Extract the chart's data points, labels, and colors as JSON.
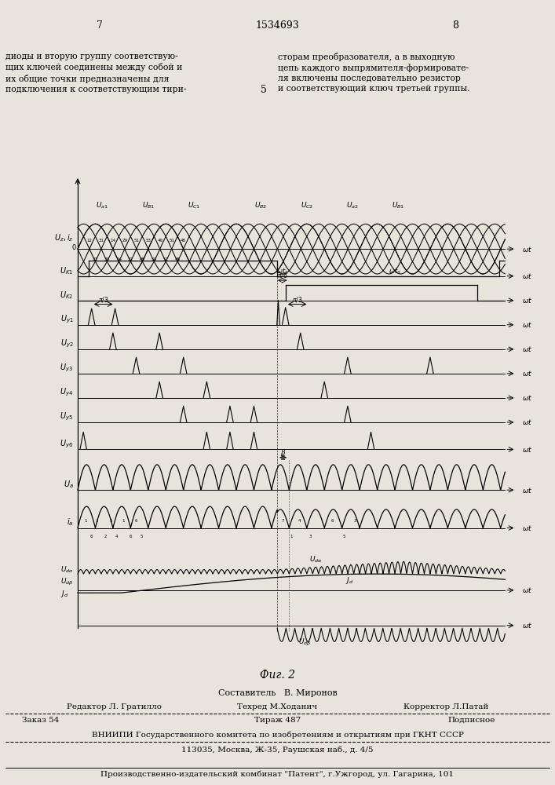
{
  "bg_color": "#e8e4dc",
  "fig_width": 7.07,
  "fig_height": 10.0,
  "dpi": 100,
  "header_page_nums": [
    "7",
    "1534693",
    "8"
  ],
  "left_text": "диоды и вторую группу соответствую-\nщих ключей соединены между собой и\nих общие точки предназначены для\nподключения к соответствующим тири-",
  "right_text": "сторам преобразователя, а в выходную\nцепь каждого выпрямителя-формировате-\nля включены последовательно резистор\nи соответствующий ключ третьей группы.",
  "center_num": "5",
  "fig_label": "Фиг. 2",
  "row_labels_left": [
    "U_z,i_z",
    "U_K1",
    "U_K2",
    "U_y1",
    "U_y2",
    "U_y3",
    "U_y4",
    "U_y5",
    "U_y6",
    "U_a",
    "i_a",
    "U_da\nU_db\nJ_d"
  ],
  "top_sine_labels": [
    "U_a1",
    "U_B1",
    "U_C1",
    "U_B2",
    "U_C2",
    "U_a2",
    "U_B1"
  ],
  "footer_line1": "Составитель   В. Миронов",
  "footer_line2_left": "Редактор Л. Гратилло",
  "footer_line2_mid": "Техред М.Ходанич",
  "footer_line2_right": "Корректор Л.Патай",
  "footer_order": "Заказ 54",
  "footer_tirazh": "Тираж 487",
  "footer_podp": "Подписное",
  "footer_vniip": "ВНИИПИ Государственного комитета по изобретениям и открытиям при ГКНТ СССР",
  "footer_addr": "113035, Москва, Ж-35, Раушская наб., д. 4/5",
  "footer_patent": "Производственно-издательский комбинат \"Патент\", г.Ужгород, ул. Гагарина, 101"
}
